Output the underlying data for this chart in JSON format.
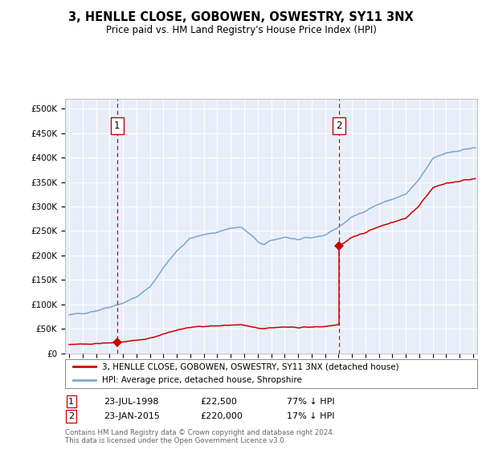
{
  "title": "3, HENLLE CLOSE, GOBOWEN, OSWESTRY, SY11 3NX",
  "subtitle": "Price paid vs. HM Land Registry's House Price Index (HPI)",
  "ylim": [
    0,
    520000
  ],
  "xlim_start": 1994.7,
  "xlim_end": 2025.3,
  "yticks": [
    0,
    50000,
    100000,
    150000,
    200000,
    250000,
    300000,
    350000,
    400000,
    450000,
    500000
  ],
  "ytick_labels": [
    "£0",
    "£50K",
    "£100K",
    "£150K",
    "£200K",
    "£250K",
    "£300K",
    "£350K",
    "£400K",
    "£450K",
    "£500K"
  ],
  "sale1_year": 1998.555,
  "sale1_price": 22500,
  "sale2_year": 2015.055,
  "sale2_price": 220000,
  "legend_entries": [
    "3, HENLLE CLOSE, GOBOWEN, OSWESTRY, SY11 3NX (detached house)",
    "HPI: Average price, detached house, Shropshire"
  ],
  "table_rows": [
    {
      "num": "1",
      "date": "23-JUL-1998",
      "price": "£22,500",
      "hpi": "77% ↓ HPI"
    },
    {
      "num": "2",
      "date": "23-JAN-2015",
      "price": "£220,000",
      "hpi": "17% ↓ HPI"
    }
  ],
  "footnote": "Contains HM Land Registry data © Crown copyright and database right 2024.\nThis data is licensed under the Open Government Licence v3.0.",
  "line_color_red": "#cc0000",
  "line_color_blue": "#6699cc",
  "plot_bg": "#e8eef8",
  "grid_color": "#ffffff"
}
